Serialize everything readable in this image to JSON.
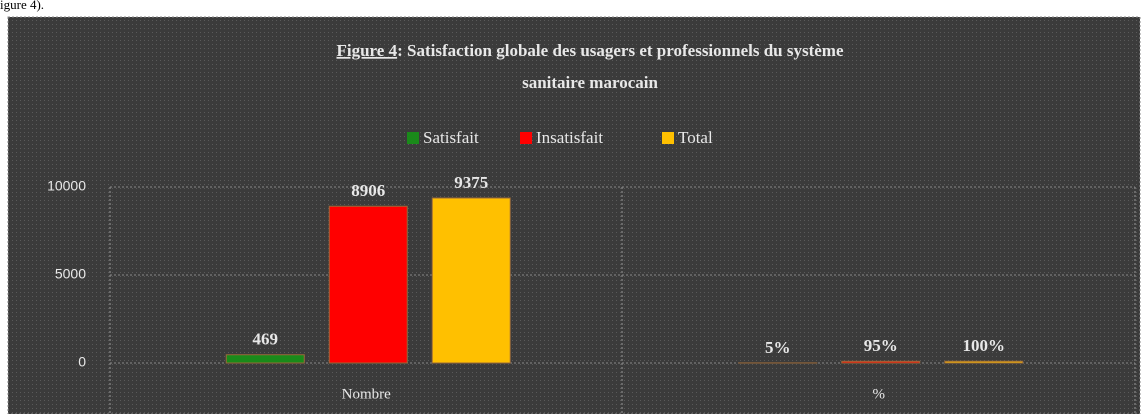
{
  "caption_fragment": "igure 4).",
  "chart_data": {
    "type": "bar",
    "title": [
      "Figure 4",
      ": Satisfaction globale des usagers et professionnels du système",
      "sanitaire marocain"
    ],
    "categories": [
      "Nombre",
      "%"
    ],
    "series": [
      {
        "name": "Satisfait",
        "color": "#1a8a1a",
        "values": [
          469,
          5
        ],
        "value_labels": [
          "469",
          "5%"
        ]
      },
      {
        "name": "Insatisfait",
        "color": "#ff0000",
        "values": [
          8906,
          95
        ],
        "value_labels": [
          "8906",
          "95%"
        ]
      },
      {
        "name": "Total",
        "color": "#ffc000",
        "values": [
          9375,
          100
        ],
        "value_labels": [
          "9375",
          "100%"
        ]
      }
    ],
    "ylim": [
      0,
      10000
    ],
    "yticks": [
      0,
      5000,
      10000
    ],
    "grid": true,
    "legend": "top"
  }
}
